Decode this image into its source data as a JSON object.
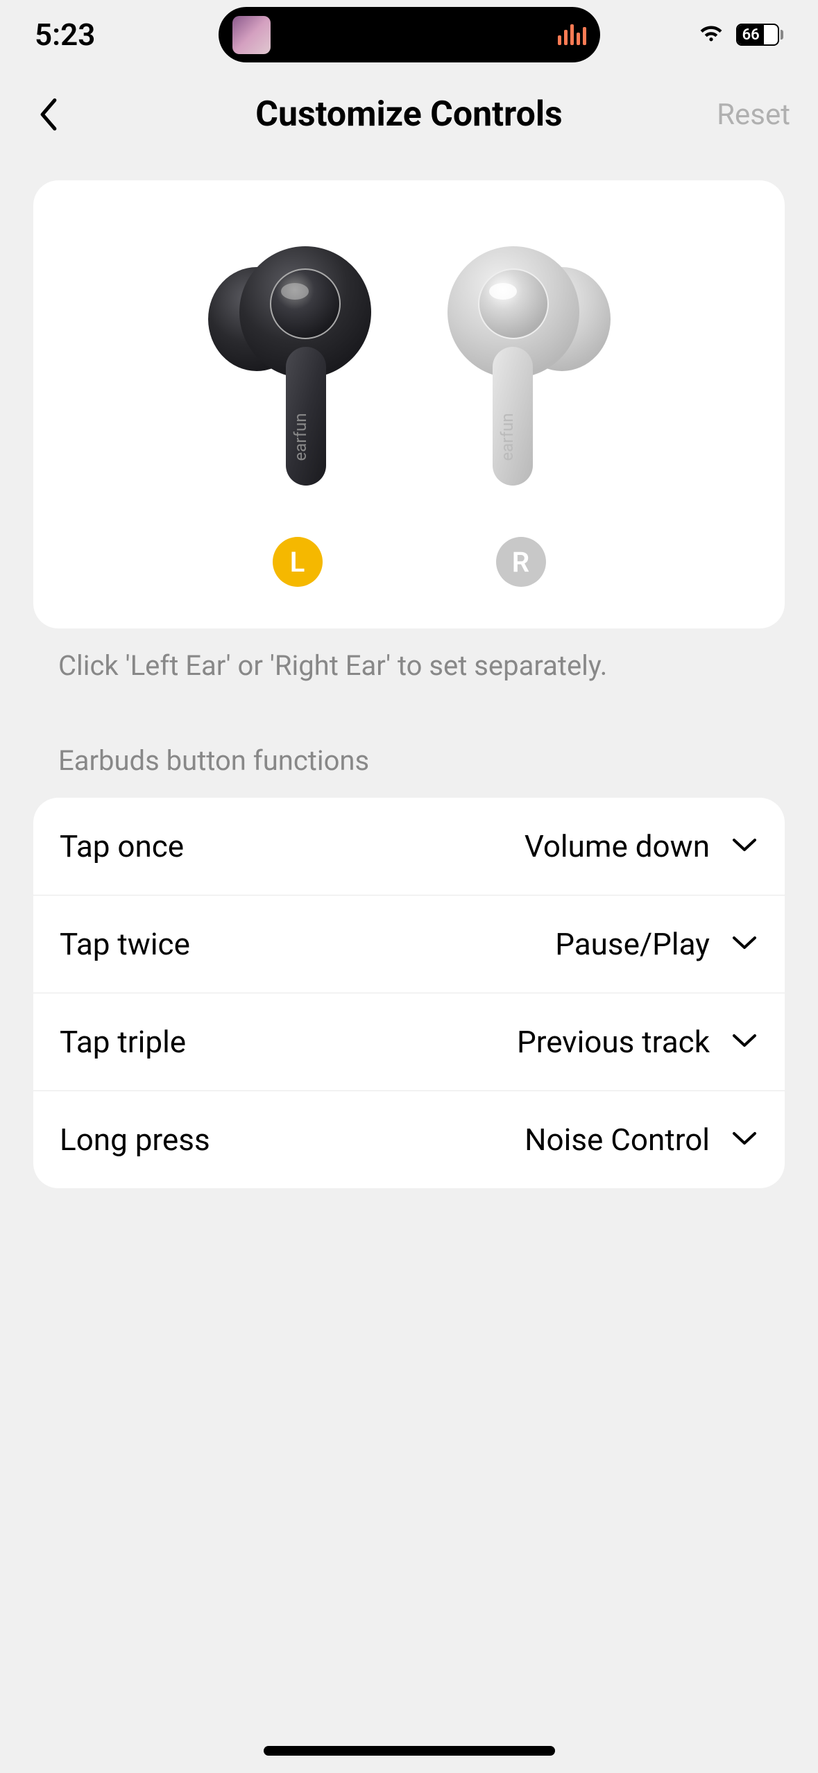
{
  "status": {
    "time": "5:23",
    "battery_pct": 66,
    "battery_fill_width_pct": 66
  },
  "colors": {
    "background": "#f0f0f0",
    "card_bg": "#ffffff",
    "text_primary": "#000000",
    "text_secondary": "#888888",
    "text_disabled": "#b0b0b0",
    "divider": "#e8e8e8",
    "badge_active": "#f5b800",
    "badge_inactive": "#c8c8c8",
    "earbud_left_dark": "#2a2a2e",
    "earbud_left_mid": "#4a4a50",
    "earbud_right_light": "#d8d8d8",
    "earbud_right_mid": "#c0c0c0"
  },
  "nav": {
    "title": "Customize Controls",
    "reset_label": "Reset"
  },
  "earbud_selector": {
    "left_label": "L",
    "right_label": "R",
    "active": "left",
    "hint": "Click 'Left Ear' or 'Right Ear' to set separately.",
    "brand_text": "earfun"
  },
  "functions": {
    "section_label": "Earbuds button functions",
    "rows": [
      {
        "gesture": "Tap once",
        "action": "Volume down"
      },
      {
        "gesture": "Tap twice",
        "action": "Pause/Play"
      },
      {
        "gesture": "Tap triple",
        "action": "Previous track"
      },
      {
        "gesture": "Long press",
        "action": "Noise Control"
      }
    ]
  }
}
